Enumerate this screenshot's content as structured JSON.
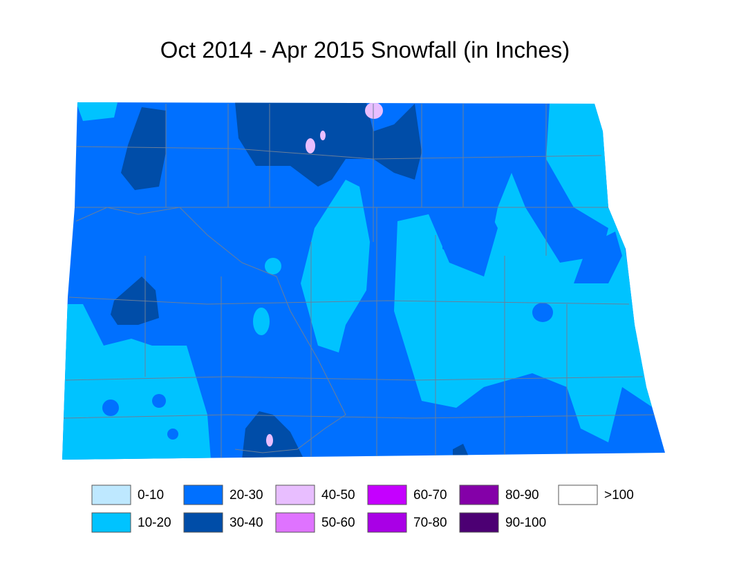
{
  "title": "Oct 2014 - Apr 2015 Snowfall (in Inches)",
  "legend": {
    "items": [
      {
        "label": "0-10",
        "color": "#bee8ff"
      },
      {
        "label": "10-20",
        "color": "#00c3ff"
      },
      {
        "label": "20-30",
        "color": "#0070ff"
      },
      {
        "label": "30-40",
        "color": "#004da8"
      },
      {
        "label": "40-50",
        "color": "#e8beff"
      },
      {
        "label": "50-60",
        "color": "#df73ff"
      },
      {
        "label": "60-70",
        "color": "#c500ff"
      },
      {
        "label": "70-80",
        "color": "#a900e6"
      },
      {
        "label": "80-90",
        "color": "#8400a8"
      },
      {
        "label": "90-100",
        "color": "#4c0073"
      },
      {
        "label": ">100",
        "color": "#ffffff"
      }
    ]
  }
}
